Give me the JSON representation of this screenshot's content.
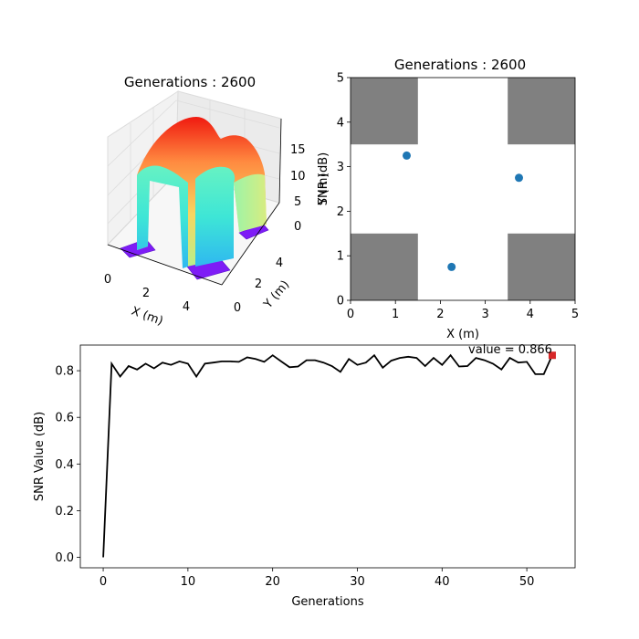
{
  "chart_data": [
    {
      "type": "surface3d",
      "title": "Generations : 2600",
      "xlabel": "X (m)",
      "ylabel": "Y (m)",
      "zlabel": "",
      "x_ticks": [
        "0",
        "2",
        "4"
      ],
      "y_ticks": [
        "0",
        "2",
        "4"
      ],
      "z_ticks": [
        "0",
        "5",
        "10",
        "15"
      ],
      "colormap": "rainbow",
      "xlim": [
        0,
        5
      ],
      "ylim": [
        0,
        5
      ],
      "zlim": [
        0,
        18
      ],
      "peak": 18
    },
    {
      "type": "scatter",
      "title": "Generations : 2600",
      "xlabel": "X (m)",
      "ylabel": "Y (m)",
      "ylabel_overlap": "SNR (dB)",
      "xlim": [
        0,
        5
      ],
      "ylim": [
        0,
        5
      ],
      "x_ticks": [
        "0",
        "1",
        "2",
        "3",
        "4",
        "5"
      ],
      "y_ticks": [
        "0",
        "1",
        "2",
        "3",
        "4",
        "5"
      ],
      "point_color": "#1f77b4",
      "obstacle_color": "#808080",
      "points": [
        {
          "x": 1.25,
          "y": 3.25
        },
        {
          "x": 3.75,
          "y": 2.75
        },
        {
          "x": 2.25,
          "y": 0.75
        }
      ],
      "obstacles": [
        {
          "x0": 0,
          "x1": 1.5,
          "y0": 3.5,
          "y1": 5
        },
        {
          "x0": 3.5,
          "x1": 5,
          "y0": 3.5,
          "y1": 5
        },
        {
          "x0": 0,
          "x1": 1.5,
          "y0": 0,
          "y1": 1.5
        },
        {
          "x0": 3.5,
          "x1": 5,
          "y0": 0,
          "y1": 1.5
        }
      ]
    },
    {
      "type": "line",
      "title": "",
      "xlabel": "Generations",
      "ylabel": "SNR Value (dB)",
      "xlim": [
        -2.7,
        55.7
      ],
      "ylim": [
        -0.045,
        0.91
      ],
      "x_ticks": [
        "0",
        "10",
        "20",
        "30",
        "40",
        "50"
      ],
      "y_ticks": [
        "0.0",
        "0.2",
        "0.4",
        "0.6",
        "0.8"
      ],
      "line_color": "#000000",
      "marker_color": "#d62728",
      "annotation": "value = 0.866",
      "x": [
        0,
        1,
        2,
        3,
        4,
        5,
        6,
        7,
        8,
        9,
        10,
        11,
        12,
        13,
        14,
        15,
        16,
        17,
        18,
        19,
        20,
        21,
        22,
        23,
        24,
        25,
        26,
        27,
        28,
        29,
        30,
        31,
        32,
        33,
        34,
        35,
        36,
        37,
        38,
        39,
        40,
        41,
        42,
        43,
        44,
        45,
        46,
        47,
        48,
        49,
        50,
        51,
        52,
        53
      ],
      "y": [
        0.0,
        0.83,
        0.775,
        0.82,
        0.805,
        0.83,
        0.81,
        0.835,
        0.825,
        0.84,
        0.83,
        0.775,
        0.83,
        0.835,
        0.84,
        0.84,
        0.838,
        0.857,
        0.85,
        0.838,
        0.866,
        0.84,
        0.815,
        0.818,
        0.845,
        0.845,
        0.835,
        0.82,
        0.795,
        0.85,
        0.825,
        0.835,
        0.866,
        0.813,
        0.843,
        0.855,
        0.86,
        0.855,
        0.82,
        0.855,
        0.825,
        0.866,
        0.818,
        0.82,
        0.855,
        0.845,
        0.83,
        0.805,
        0.855,
        0.835,
        0.838,
        0.785,
        0.785,
        0.866
      ]
    }
  ]
}
